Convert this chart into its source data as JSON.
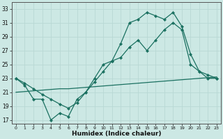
{
  "xlabel": "Humidex (Indice chaleur)",
  "bg_color": "#cce8e4",
  "line_color": "#1a7060",
  "grid_color": "#b8d8d4",
  "xlim": [
    -0.5,
    23.5
  ],
  "ylim": [
    16.5,
    34.0
  ],
  "xticks": [
    0,
    1,
    2,
    3,
    4,
    5,
    6,
    7,
    8,
    9,
    10,
    11,
    12,
    13,
    14,
    15,
    16,
    17,
    18,
    19,
    20,
    21,
    22,
    23
  ],
  "yticks": [
    17,
    19,
    21,
    23,
    25,
    27,
    29,
    31,
    33
  ],
  "line_jagged_x": [
    0,
    1,
    2,
    3,
    4,
    5,
    6,
    7,
    8,
    9,
    10,
    11,
    12,
    13,
    14,
    15,
    16,
    17,
    18,
    19,
    20,
    21,
    22,
    23
  ],
  "line_jagged_y": [
    23,
    22,
    20,
    20,
    17,
    18,
    17.5,
    20,
    21,
    23,
    25,
    25.5,
    28,
    31,
    31.5,
    32.5,
    32,
    31.5,
    32.5,
    30.5,
    26.5,
    24,
    23,
    23
  ],
  "line_diag_x": [
    0,
    1,
    2,
    3,
    4,
    5,
    6,
    7,
    8,
    9,
    10,
    11,
    12,
    13,
    14,
    15,
    16,
    17,
    18,
    19,
    20,
    21,
    22,
    23
  ],
  "line_diag_y": [
    23,
    22.3,
    21.5,
    20.7,
    20,
    19.3,
    18.7,
    19.5,
    21,
    22.5,
    24,
    25.5,
    26,
    27.5,
    28.5,
    27,
    28.5,
    30,
    31,
    30,
    25,
    24,
    23.5,
    23
  ],
  "line_flat_x": [
    0,
    1,
    2,
    3,
    4,
    5,
    6,
    7,
    8,
    9,
    10,
    11,
    12,
    13,
    14,
    15,
    16,
    17,
    18,
    19,
    20,
    21,
    22,
    23
  ],
  "line_flat_y": [
    21,
    21.1,
    21.2,
    21.3,
    21.4,
    21.5,
    21.5,
    21.6,
    21.7,
    21.8,
    21.9,
    22.0,
    22.1,
    22.2,
    22.3,
    22.4,
    22.5,
    22.6,
    22.7,
    22.8,
    22.9,
    23.0,
    23.1,
    23.2
  ]
}
